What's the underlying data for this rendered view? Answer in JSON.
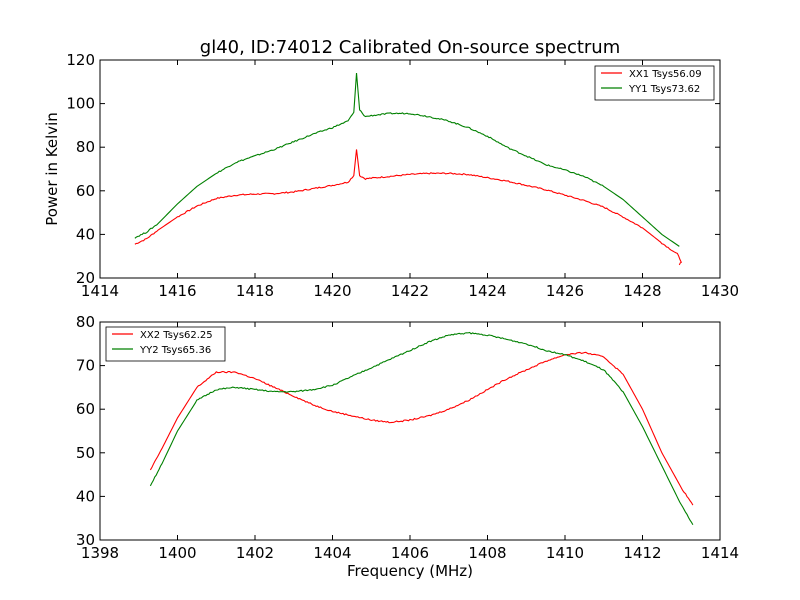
{
  "figure": {
    "title": "gl40, ID:74012 Calibrated On-source spectrum",
    "ylabel": "Power in Kelvin",
    "xlabel": "Frequency (MHz)"
  },
  "chart_data": [
    {
      "type": "line",
      "title": "gl40, ID:74012 Calibrated On-source spectrum",
      "xlabel": "",
      "ylabel": "Power in Kelvin",
      "xlim": [
        1414,
        1430
      ],
      "ylim": [
        20,
        120
      ],
      "xticks": [
        1414,
        1416,
        1418,
        1420,
        1422,
        1424,
        1426,
        1428,
        1430
      ],
      "yticks": [
        20,
        40,
        60,
        80,
        100,
        120
      ],
      "grid": false,
      "legend_position": "top-right",
      "series": [
        {
          "name": "XX1 Tsys56.09",
          "color": "#ff0000",
          "points": [
            [
              1414.9,
              35.5
            ],
            [
              1415.2,
              38
            ],
            [
              1415.5,
              42
            ],
            [
              1416,
              48
            ],
            [
              1416.5,
              53
            ],
            [
              1417,
              56.5
            ],
            [
              1417.5,
              58
            ],
            [
              1418,
              58.5
            ],
            [
              1418.5,
              58.7
            ],
            [
              1419,
              59.5
            ],
            [
              1419.5,
              61
            ],
            [
              1420,
              62.5
            ],
            [
              1420.4,
              64
            ],
            [
              1420.55,
              67
            ],
            [
              1420.62,
              79
            ],
            [
              1420.7,
              67
            ],
            [
              1420.85,
              65.5
            ],
            [
              1421,
              65.8
            ],
            [
              1422,
              67.5
            ],
            [
              1422.5,
              68
            ],
            [
              1423,
              68
            ],
            [
              1423.5,
              67.5
            ],
            [
              1424,
              66
            ],
            [
              1424.5,
              64.5
            ],
            [
              1425,
              62.5
            ],
            [
              1425.5,
              60.5
            ],
            [
              1426,
              58
            ],
            [
              1426.5,
              55.5
            ],
            [
              1427,
              52.5
            ],
            [
              1427.5,
              48
            ],
            [
              1428,
              43
            ],
            [
              1428.5,
              36
            ],
            [
              1428.9,
              31
            ],
            [
              1429,
              27.5
            ],
            [
              1428.95,
              26
            ]
          ]
        },
        {
          "name": "YY1 Tsys73.62",
          "color": "#008000",
          "points": [
            [
              1414.9,
              38.5
            ],
            [
              1415.2,
              41
            ],
            [
              1415.5,
              45
            ],
            [
              1416,
              54
            ],
            [
              1416.5,
              62
            ],
            [
              1417,
              68
            ],
            [
              1417.5,
              73
            ],
            [
              1418,
              76
            ],
            [
              1418.5,
              79
            ],
            [
              1419,
              82.5
            ],
            [
              1419.5,
              86
            ],
            [
              1420,
              89
            ],
            [
              1420.4,
              92
            ],
            [
              1420.55,
              96
            ],
            [
              1420.62,
              114
            ],
            [
              1420.7,
              97
            ],
            [
              1420.85,
              94
            ],
            [
              1421,
              94.5
            ],
            [
              1421.5,
              95.5
            ],
            [
              1422,
              95.5
            ],
            [
              1422.5,
              94
            ],
            [
              1423,
              92
            ],
            [
              1423.5,
              89
            ],
            [
              1424,
              85
            ],
            [
              1424.5,
              80
            ],
            [
              1425,
              76
            ],
            [
              1425.5,
              72
            ],
            [
              1426,
              69.5
            ],
            [
              1426.5,
              66.5
            ],
            [
              1427,
              62
            ],
            [
              1427.5,
              56
            ],
            [
              1428,
              48
            ],
            [
              1428.5,
              40
            ],
            [
              1428.95,
              34.5
            ]
          ]
        }
      ]
    },
    {
      "type": "line",
      "title": "",
      "xlabel": "Frequency (MHz)",
      "ylabel": "",
      "xlim": [
        1398,
        1414
      ],
      "ylim": [
        30,
        80
      ],
      "xticks": [
        1398,
        1400,
        1402,
        1404,
        1406,
        1408,
        1410,
        1412,
        1414
      ],
      "yticks": [
        30,
        40,
        50,
        60,
        70,
        80
      ],
      "grid": false,
      "legend_position": "top-left",
      "series": [
        {
          "name": "XX2 Tsys62.25",
          "color": "#ff0000",
          "points": [
            [
              1399.3,
              46
            ],
            [
              1399.6,
              51
            ],
            [
              1400,
              58
            ],
            [
              1400.5,
              65
            ],
            [
              1401,
              68.5
            ],
            [
              1401.5,
              68.5
            ],
            [
              1402,
              67
            ],
            [
              1402.5,
              65
            ],
            [
              1403,
              63
            ],
            [
              1403.5,
              61
            ],
            [
              1404,
              59.5
            ],
            [
              1404.5,
              58.5
            ],
            [
              1405,
              57.5
            ],
            [
              1405.5,
              57
            ],
            [
              1406,
              57.5
            ],
            [
              1406.5,
              58.5
            ],
            [
              1407,
              60
            ],
            [
              1407.5,
              62
            ],
            [
              1408,
              64.5
            ],
            [
              1408.5,
              67
            ],
            [
              1409,
              69
            ],
            [
              1409.5,
              71
            ],
            [
              1410,
              72.5
            ],
            [
              1410.5,
              73
            ],
            [
              1411,
              72
            ],
            [
              1411.5,
              68
            ],
            [
              1412,
              60
            ],
            [
              1412.5,
              50
            ],
            [
              1413,
              42
            ],
            [
              1413.3,
              38
            ]
          ]
        },
        {
          "name": "YY2 Tsys65.36",
          "color": "#008000",
          "points": [
            [
              1399.3,
              42.5
            ],
            [
              1399.6,
              47.5
            ],
            [
              1400,
              55
            ],
            [
              1400.5,
              62
            ],
            [
              1401,
              64.5
            ],
            [
              1401.5,
              65
            ],
            [
              1402,
              64.5
            ],
            [
              1402.5,
              64
            ],
            [
              1403,
              64
            ],
            [
              1403.5,
              64.5
            ],
            [
              1404,
              65.5
            ],
            [
              1404.5,
              67.5
            ],
            [
              1405,
              69.5
            ],
            [
              1405.5,
              71.5
            ],
            [
              1406,
              73.5
            ],
            [
              1406.5,
              75.5
            ],
            [
              1407,
              77
            ],
            [
              1407.5,
              77.5
            ],
            [
              1408,
              77
            ],
            [
              1408.5,
              76
            ],
            [
              1409,
              75
            ],
            [
              1409.5,
              73.5
            ],
            [
              1410,
              72.5
            ],
            [
              1410.5,
              71
            ],
            [
              1411,
              69
            ],
            [
              1411.5,
              64
            ],
            [
              1412,
              56
            ],
            [
              1412.5,
              47
            ],
            [
              1413,
              38
            ],
            [
              1413.3,
              33.5
            ]
          ]
        }
      ]
    }
  ]
}
